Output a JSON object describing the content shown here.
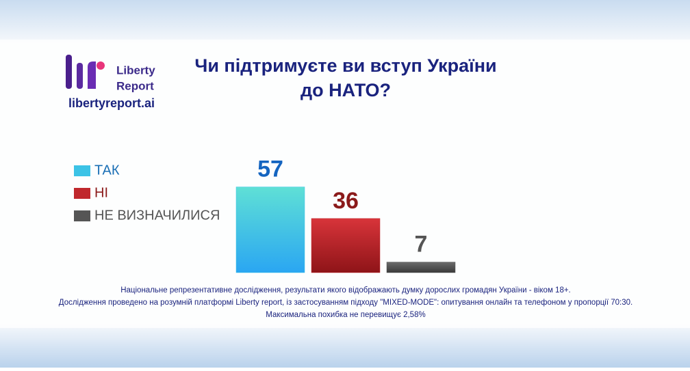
{
  "chart_data": {
    "type": "bar",
    "title": [
      "Чи підтримуєте ви вступ України",
      "до НАТО?"
    ],
    "brand": {
      "name": [
        "Liberty",
        "Report"
      ],
      "site": "libertyreport.ai"
    },
    "categories": [
      "ТАК",
      "НІ",
      "НЕ ВИЗНАЧИЛИСЯ"
    ],
    "values": [
      57,
      36,
      7
    ],
    "colors": [
      "#3cc3e6",
      "#c0282d",
      "#555555"
    ],
    "label_colors": [
      "#1565c0",
      "#8b1a1a",
      "#555555"
    ],
    "notes": [
      "Національне репрезентативне дослідження, результати якого відображають думку дорослих громадян України - віком 18+.",
      "Дослідження проведено на розумній платформі Liberty report, із застосуванням підходу \"MIXED-MODE\": опитування онлайн та телефоном у пропорції 70:30.",
      "Максимальна похибка не перевищує 2,58%"
    ]
  }
}
